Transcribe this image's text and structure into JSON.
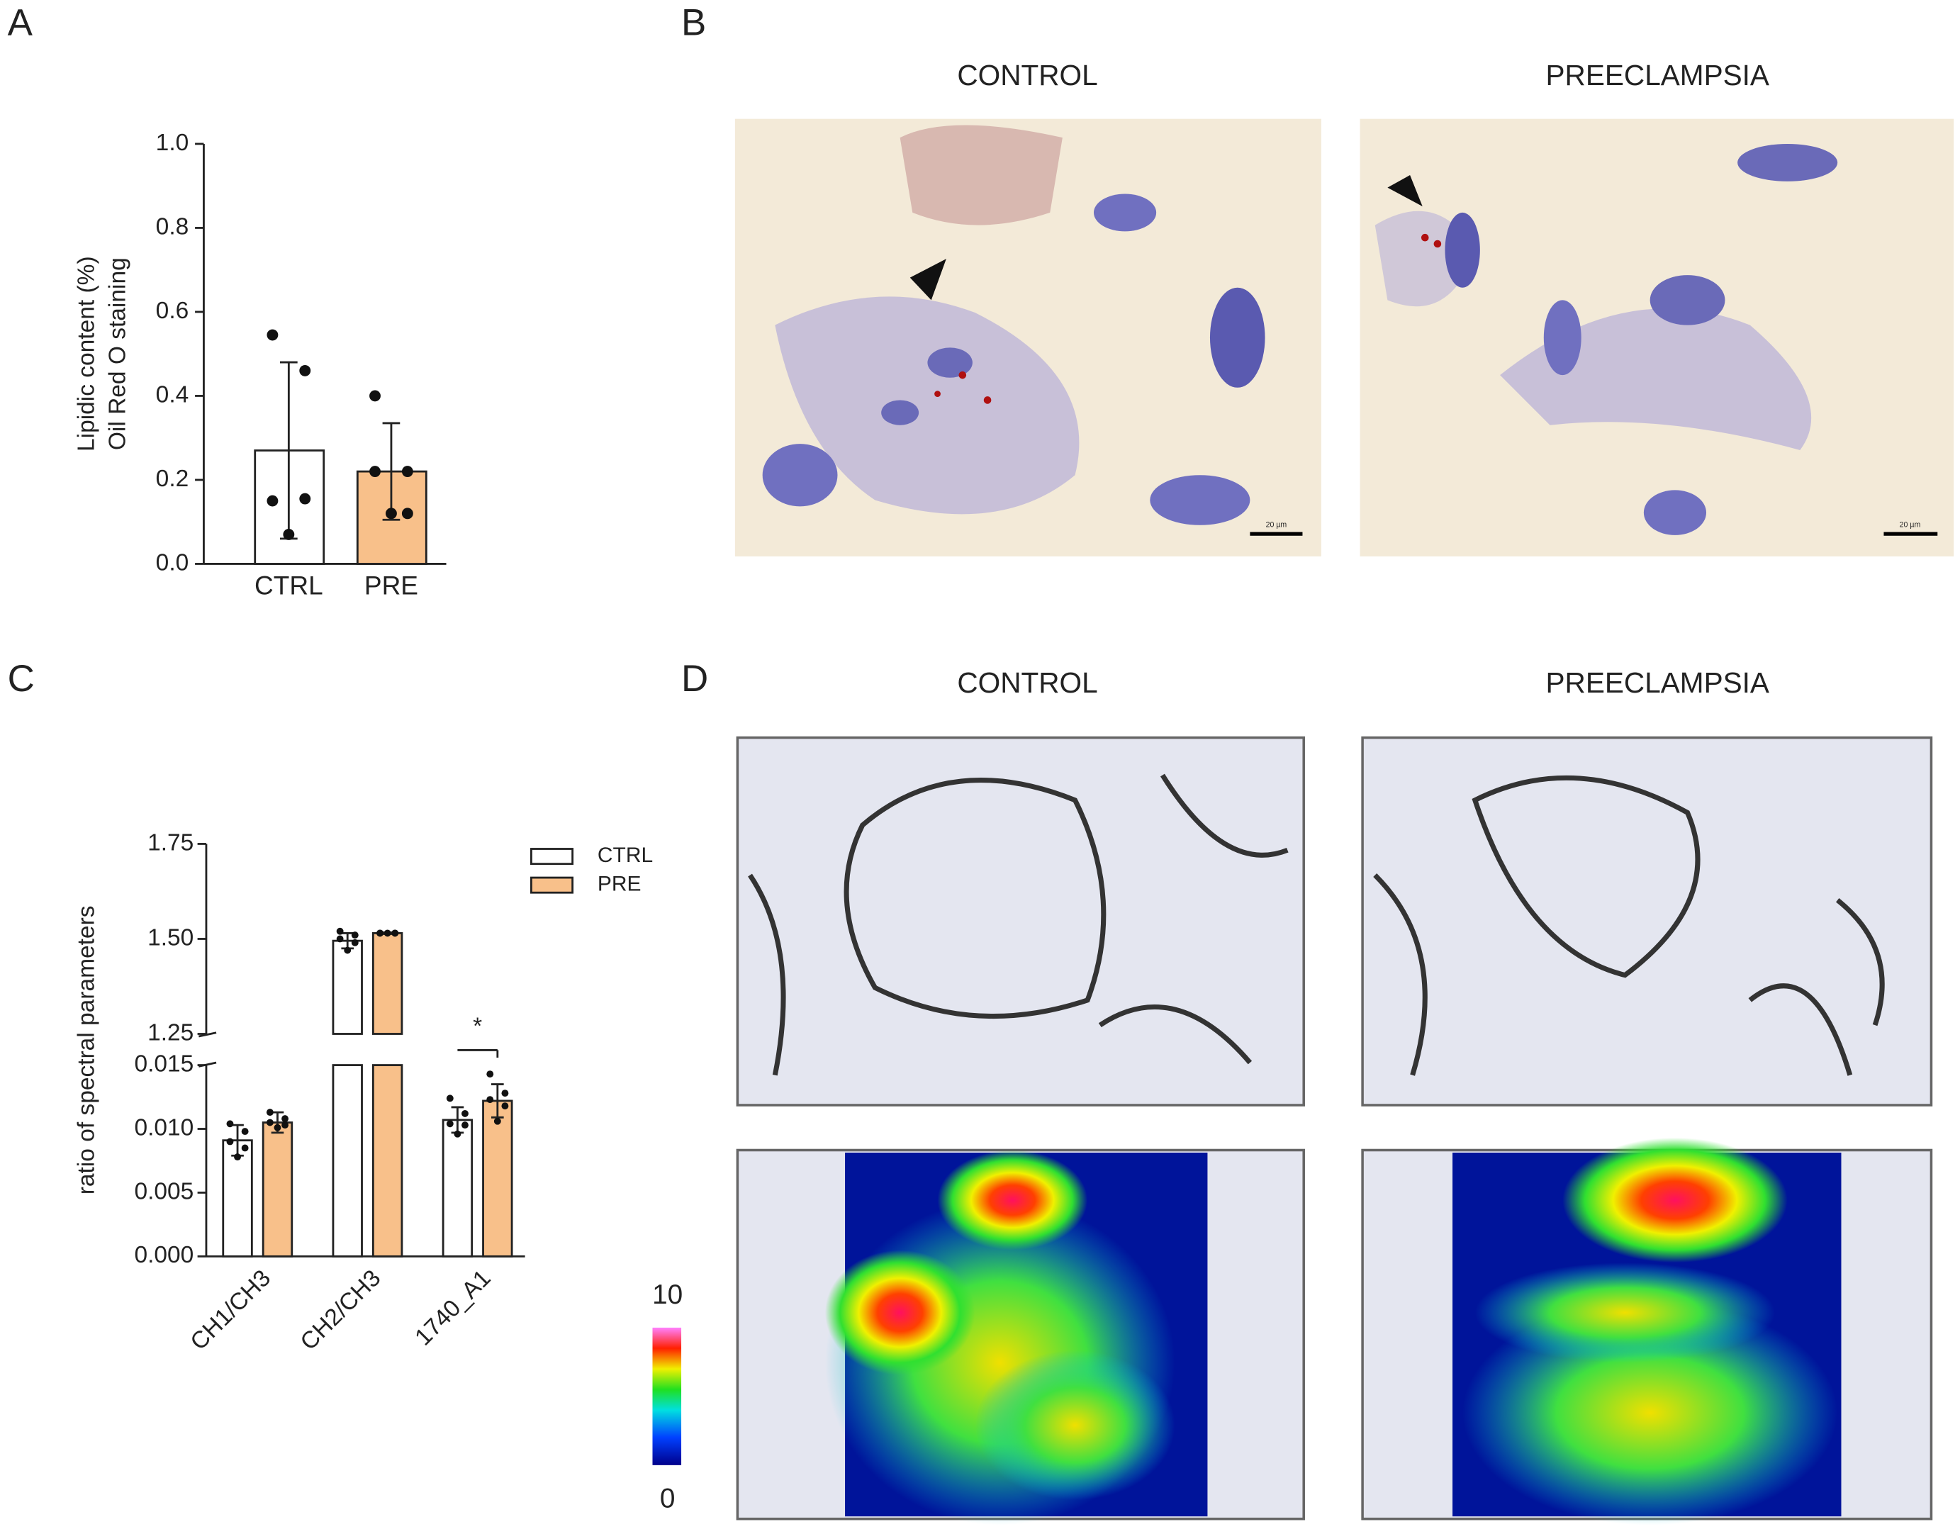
{
  "panel_labels": [
    "A",
    "B",
    "C",
    "D"
  ],
  "images": {
    "B": {
      "titles": [
        "CONTROL",
        "PREECLAMPSIA"
      ],
      "scale_bar": "20 µm"
    },
    "D": {
      "titles": [
        "CONTROL",
        "PREECLAMPSIA"
      ],
      "colorbar_ticks": [
        0,
        10
      ]
    }
  },
  "chart_data": [
    {
      "type": "bar",
      "ylabel": [
        "Lipidic content (%)",
        "Oil Red O staining"
      ],
      "categories": [
        "CTRL",
        "PRE"
      ],
      "values": [
        0.27,
        0.22
      ],
      "errors": [
        0.21,
        0.115
      ],
      "points": [
        [
          0.545,
          0.46,
          0.15,
          0.155,
          0.07
        ],
        [
          0.4,
          0.22,
          0.22,
          0.12,
          0.12
        ]
      ],
      "colors": [
        "#ffffff",
        "#f8c08a"
      ],
      "ylim": [
        0,
        1
      ],
      "yticks": [
        {
          "value": 0,
          "label": "0.0"
        },
        {
          "value": 0.2,
          "label": "0.2"
        },
        {
          "value": 0.4,
          "label": "0.4"
        },
        {
          "value": 0.6,
          "label": "0.6"
        },
        {
          "value": 0.8,
          "label": "0.8"
        },
        {
          "value": 1,
          "label": "1.0"
        }
      ]
    },
    {
      "type": "bar",
      "ylabel": "ratio of spectral parameters",
      "categories": [
        "CH1/CH3",
        "CH2/CH3",
        "1740_A1"
      ],
      "series": [
        {
          "name": "CTRL",
          "color": "#ffffff",
          "values": [
            0.0091,
            1.495,
            0.0107
          ],
          "errors": [
            0.0012,
            0.02,
            0.001
          ],
          "points": [
            [
              0.0104,
              0.0098,
              0.009,
              0.0085,
              0.0078
            ],
            [
              1.52,
              1.51,
              1.5,
              1.49,
              1.47
            ],
            [
              0.0124,
              0.0112,
              0.0104,
              0.0103,
              0.0096
            ]
          ]
        },
        {
          "name": "PRE",
          "color": "#f8c08a",
          "values": [
            0.0105,
            1.515,
            0.0122
          ],
          "errors": [
            0.0008,
            0.002,
            0.0013
          ],
          "points": [
            [
              0.0113,
              0.0108,
              0.0105,
              0.0103,
              0.0101
            ],
            [
              1.515,
              1.515,
              1.515,
              1.515,
              1.515
            ],
            [
              0.0143,
              0.0128,
              0.0123,
              0.0118,
              0.0106
            ]
          ]
        }
      ],
      "axis_segments": [
        {
          "ylim": [
            0,
            0.015
          ],
          "yticks": [
            {
              "value": 0,
              "label": "0.000"
            },
            {
              "value": 0.005,
              "label": "0.005"
            },
            {
              "value": 0.01,
              "label": "0.010"
            },
            {
              "value": 0.015,
              "label": "0.015"
            }
          ]
        },
        {
          "ylim": [
            1.25,
            1.75
          ],
          "yticks": [
            {
              "value": 1.25,
              "label": "1.25"
            },
            {
              "value": 1.5,
              "label": "1.50"
            },
            {
              "value": 1.75,
              "label": "1.75"
            }
          ]
        }
      ],
      "significance": [
        {
          "label": "*",
          "category": "1740_A1"
        }
      ]
    }
  ]
}
